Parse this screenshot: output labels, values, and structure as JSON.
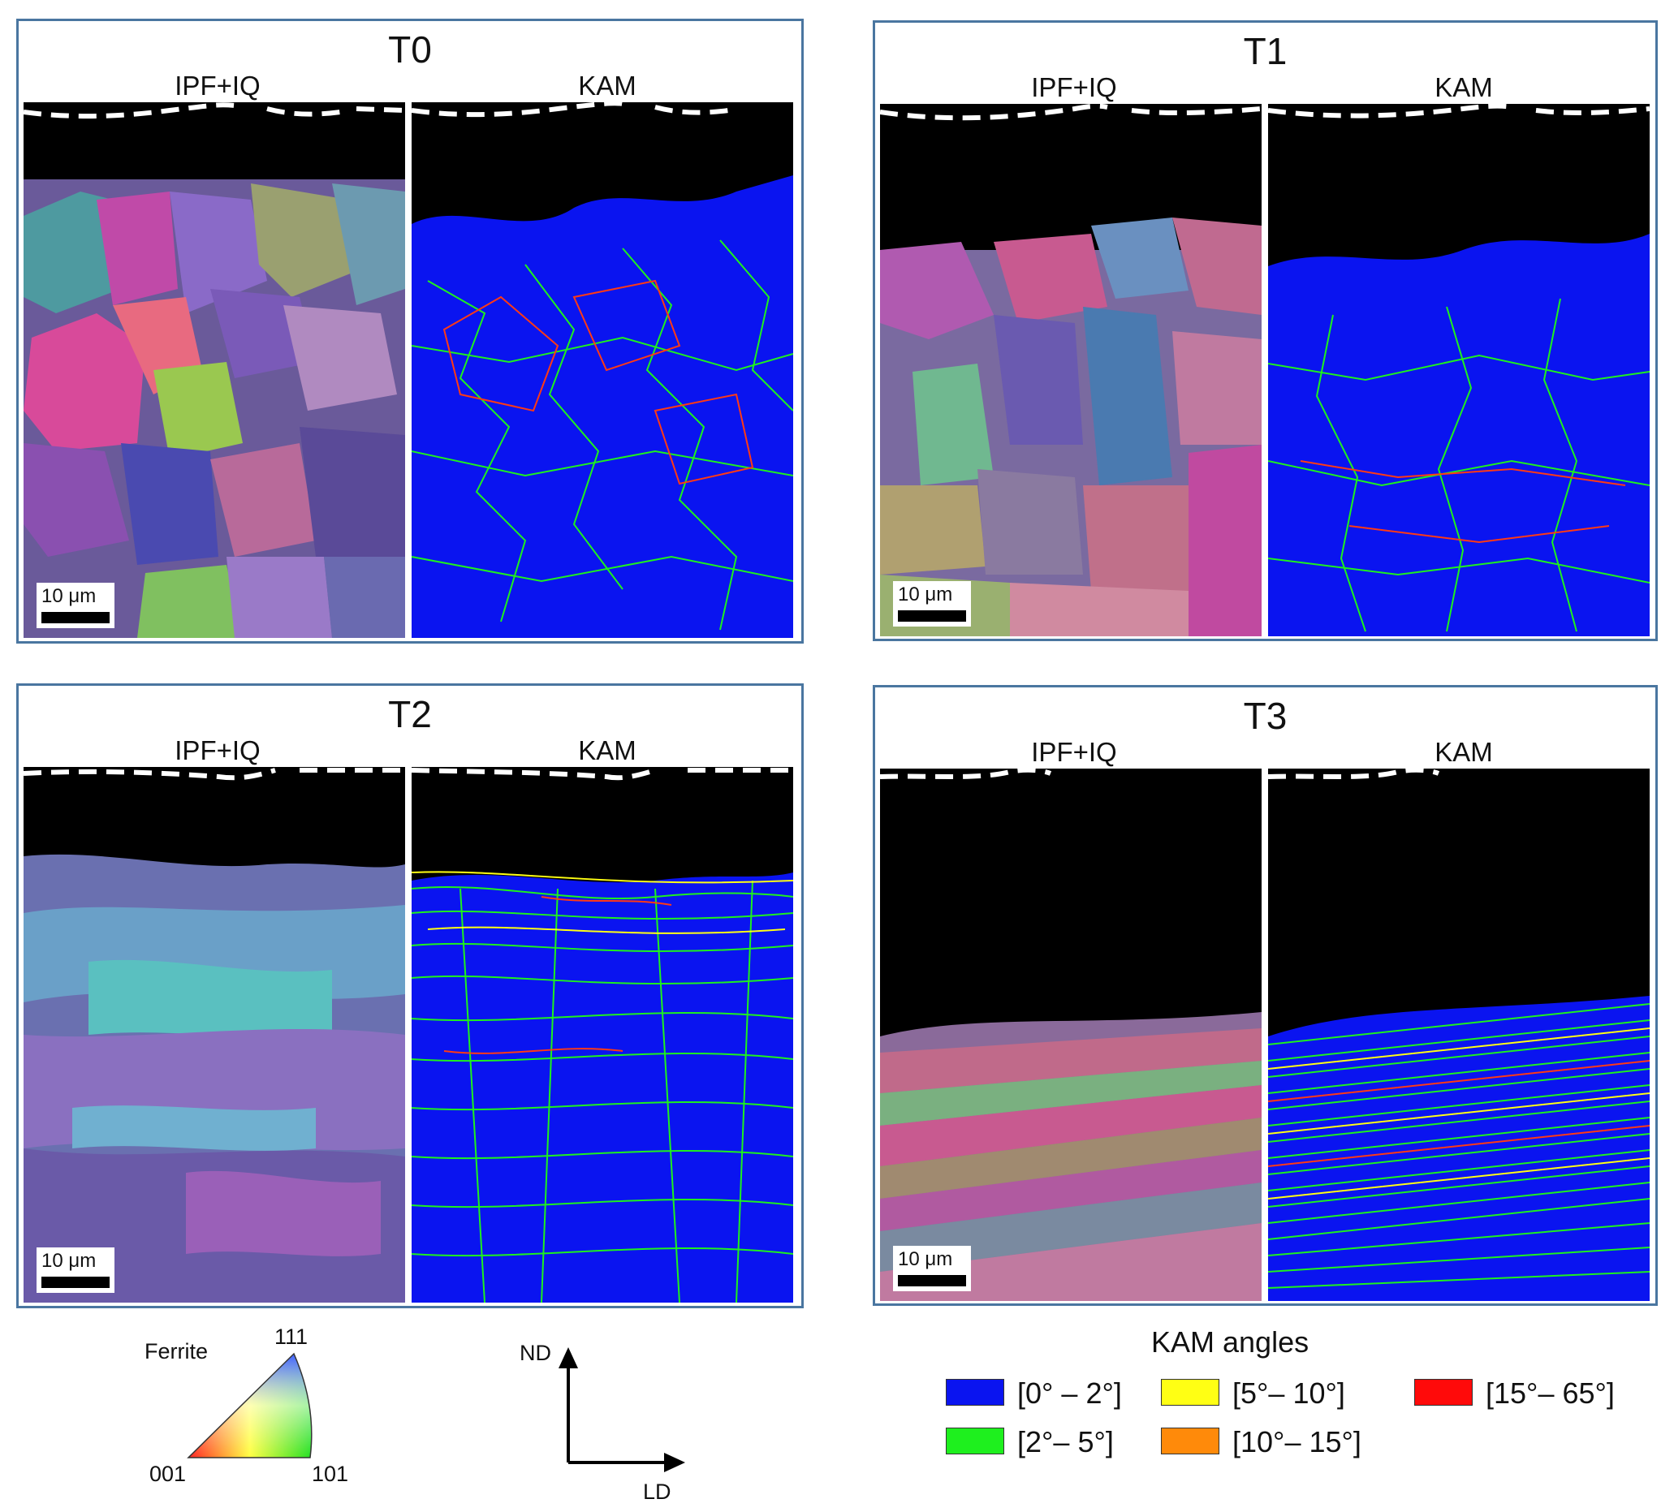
{
  "panels": [
    {
      "id": "t0",
      "title": "T0",
      "left_label": "IPF+IQ",
      "right_label": "KAM",
      "scale": "10 μm"
    },
    {
      "id": "t1",
      "title": "T1",
      "left_label": "IPF+IQ",
      "right_label": "KAM",
      "scale": "10 μm"
    },
    {
      "id": "t2",
      "title": "T2",
      "left_label": "IPF+IQ",
      "right_label": "KAM",
      "scale": "10 μm"
    },
    {
      "id": "t3",
      "title": "T3",
      "left_label": "IPF+IQ",
      "right_label": "KAM",
      "scale": "10 μm"
    }
  ],
  "ipf_key": {
    "phase": "Ferrite",
    "corner_111": "111",
    "corner_001": "001",
    "corner_101": "101"
  },
  "axes": {
    "vertical": "ND",
    "horizontal": "LD"
  },
  "kam_legend": {
    "title": "KAM angles",
    "items": [
      {
        "label": "[0° – 2°]",
        "color": "#0a14f0"
      },
      {
        "label": "[5°– 10°]",
        "color": "#ffff14"
      },
      {
        "label": "[15°– 65°]",
        "color": "#ff0a0a"
      },
      {
        "label": "[2°– 5°]",
        "color": "#1ef01e"
      },
      {
        "label": "[10°– 15°]",
        "color": "#ff8a0a"
      }
    ]
  },
  "colors": {
    "frame": "#4a76a0",
    "kam_background": "#0a14f0",
    "boundary_green": "#1ef01e",
    "boundary_red": "#ff3a14"
  }
}
